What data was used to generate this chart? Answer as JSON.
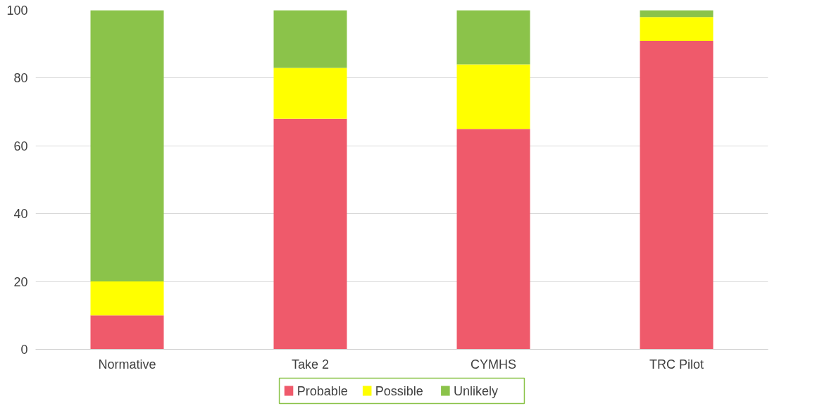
{
  "chart_data": {
    "type": "bar",
    "stacked": true,
    "categories": [
      "Normative",
      "Take 2",
      "CYMHS",
      "TRC Pilot"
    ],
    "series": [
      {
        "name": "Probable",
        "color": "#ef5a6b",
        "values": [
          10,
          68,
          65,
          91
        ]
      },
      {
        "name": "Possible",
        "color": "#ffff00",
        "values": [
          10,
          15,
          19,
          7
        ]
      },
      {
        "name": "Unlikely",
        "color": "#8bc34a",
        "values": [
          80,
          17,
          16,
          2
        ]
      }
    ],
    "ylim": [
      0,
      100
    ],
    "yticks": [
      0,
      20,
      40,
      60,
      80,
      100
    ],
    "grid": "y",
    "legend": "bottom"
  }
}
